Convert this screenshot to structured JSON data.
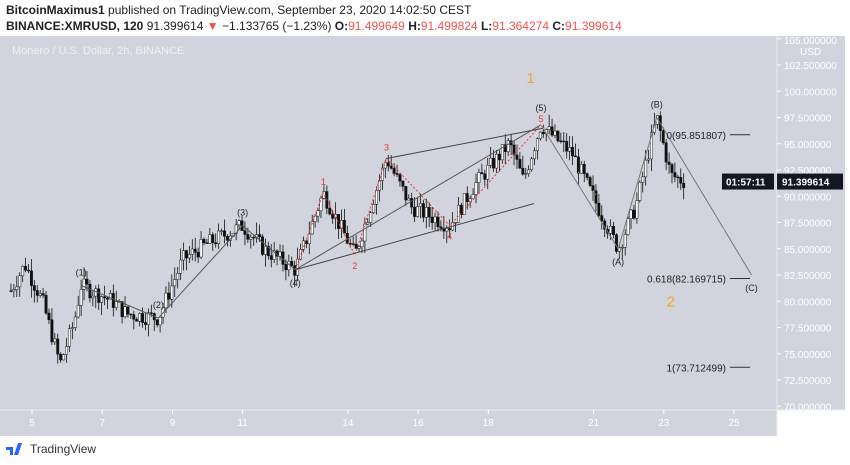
{
  "header": {
    "author": "BitcoinMaximus1",
    "published": "published on TradingView.com, September 23, 2020 14:02:50 CEST",
    "symbol": "BINANCE:XMRUSD, 120",
    "last": "91.399614",
    "change": "−1.133765 (−1.23%)",
    "o_label": "O:",
    "o": "91.499649",
    "h_label": "H:",
    "h": "91.499824",
    "l_label": "L:",
    "l": "91.364274",
    "c_label": "C:",
    "c": "91.399614"
  },
  "chart_title": "Monero / U.S. Dollar, 2h, BINANCE",
  "footer": {
    "brand": "TradingView"
  },
  "colors": {
    "bg": "#d1d4dc",
    "up": "#ffffff",
    "down": "#111111",
    "wave_red": "#e53935",
    "wave_orange": "#f5a623",
    "down_arrow": "#ef5350"
  },
  "chart_data": {
    "type": "candlestick",
    "y_unit": "USD",
    "ylim": [
      70,
      105
    ],
    "y_ticks": [
      "105.000000",
      "102.500000",
      "100.000000",
      "97.500000",
      "95.000000",
      "92.500000",
      "90.000000",
      "87.500000",
      "85.000000",
      "82.500000",
      "80.000000",
      "77.500000",
      "75.000000",
      "72.500000",
      "70.000000"
    ],
    "x_ticks": [
      "5",
      "7",
      "9",
      "11",
      "14",
      "16",
      "18",
      "21",
      "23",
      "25"
    ],
    "current_price": "91.399614",
    "countdown": "01:57:11",
    "price_path": [
      [
        4.4,
        81
      ],
      [
        4.8,
        83.5
      ],
      [
        5.3,
        80
      ],
      [
        5.8,
        74
      ],
      [
        6.2,
        78
      ],
      [
        6.4,
        81.5
      ],
      [
        7.3,
        80
      ],
      [
        7.7,
        78.8
      ],
      [
        8.6,
        78.4
      ],
      [
        9.3,
        84
      ],
      [
        10,
        85.5
      ],
      [
        11,
        87.2
      ],
      [
        11.6,
        85
      ],
      [
        12.5,
        83
      ],
      [
        13.3,
        90.3
      ],
      [
        14.2,
        84.4
      ],
      [
        15.1,
        93.6
      ],
      [
        15.8,
        89
      ],
      [
        16.9,
        87.2
      ],
      [
        17.6,
        91
      ],
      [
        18.6,
        95
      ],
      [
        19,
        91.5
      ],
      [
        19.5,
        96.8
      ],
      [
        20.4,
        94
      ],
      [
        21.7,
        85
      ],
      [
        22.2,
        89
      ],
      [
        22.8,
        97.5
      ],
      [
        23.2,
        92
      ],
      [
        23.6,
        91.4
      ]
    ],
    "elliott_major": [
      {
        "label": "(1)",
        "x": 6.4,
        "y": 81.5
      },
      {
        "label": "(2)",
        "x": 8.6,
        "y": 78.4
      },
      {
        "label": "(3)",
        "x": 11,
        "y": 87.2
      },
      {
        "label": "(4)",
        "x": 12.5,
        "y": 83
      },
      {
        "label": "(5)",
        "x": 19.5,
        "y": 96.8
      },
      {
        "label": "(A)",
        "x": 21.7,
        "y": 85
      },
      {
        "label": "(B)",
        "x": 22.8,
        "y": 97.5
      },
      {
        "label": "(C)",
        "x": 25.5,
        "y": 82.5
      }
    ],
    "elliott_minor": [
      {
        "label": "1",
        "x": 13.3,
        "y": 90.3
      },
      {
        "label": "2",
        "x": 14.2,
        "y": 84.4
      },
      {
        "label": "3",
        "x": 15.1,
        "y": 93.6
      },
      {
        "label": "4",
        "x": 16.9,
        "y": 87.2
      },
      {
        "label": "5",
        "x": 19.5,
        "y": 96.8
      }
    ],
    "cycle_labels": [
      {
        "label": "1",
        "x": 19.2,
        "y": 100.8
      },
      {
        "label": "2",
        "x": 23.2,
        "y": 79.5
      }
    ],
    "fib_levels": [
      {
        "label": "0(95.851807)",
        "value": 95.851807
      },
      {
        "label": "0.618(82.169715)",
        "value": 82.169715
      },
      {
        "label": "1(73.712499)",
        "value": 73.712499
      }
    ]
  }
}
